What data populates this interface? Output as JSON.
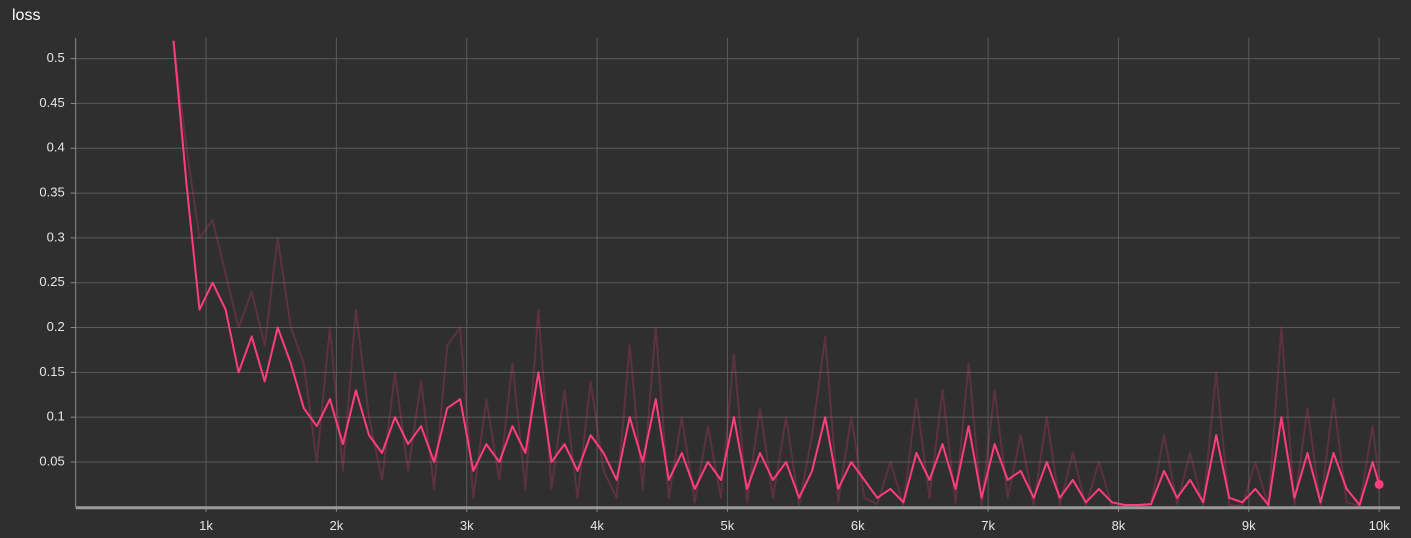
{
  "chart_data": {
    "type": "line",
    "title": "loss",
    "x": [
      750,
      850,
      950,
      1050,
      1150,
      1250,
      1350,
      1450,
      1550,
      1650,
      1750,
      1850,
      1950,
      2050,
      2150,
      2250,
      2350,
      2450,
      2550,
      2650,
      2750,
      2850,
      2950,
      3050,
      3150,
      3250,
      3350,
      3450,
      3550,
      3650,
      3750,
      3850,
      3950,
      4050,
      4150,
      4250,
      4350,
      4450,
      4550,
      4650,
      4750,
      4850,
      4950,
      5050,
      5150,
      5250,
      5350,
      5450,
      5550,
      5650,
      5750,
      5850,
      5950,
      6050,
      6150,
      6250,
      6350,
      6450,
      6550,
      6650,
      6750,
      6850,
      6950,
      7050,
      7150,
      7250,
      7350,
      7450,
      7550,
      7650,
      7750,
      7850,
      7950,
      8050,
      8150,
      8250,
      8350,
      8450,
      8550,
      8650,
      8750,
      8850,
      8950,
      9050,
      9150,
      9250,
      9350,
      9450,
      9550,
      9650,
      9750,
      9850,
      9950,
      10000
    ],
    "series": [
      {
        "color": "#ff3d7f",
        "opacity": 0.22,
        "values": [
          0.52,
          0.4,
          0.3,
          0.32,
          0.26,
          0.2,
          0.24,
          0.18,
          0.3,
          0.2,
          0.16,
          0.05,
          0.2,
          0.04,
          0.22,
          0.1,
          0.03,
          0.15,
          0.04,
          0.14,
          0.02,
          0.18,
          0.2,
          0.01,
          0.12,
          0.03,
          0.16,
          0.02,
          0.22,
          0.02,
          0.13,
          0.01,
          0.14,
          0.04,
          0.01,
          0.18,
          0.02,
          0.2,
          0.01,
          0.1,
          0.005,
          0.09,
          0.01,
          0.17,
          0.005,
          0.11,
          0.01,
          0.1,
          0.002,
          0.08,
          0.19,
          0.005,
          0.1,
          0.01,
          0.003,
          0.05,
          0.002,
          0.12,
          0.01,
          0.13,
          0.005,
          0.16,
          0.002,
          0.13,
          0.01,
          0.08,
          0.002,
          0.1,
          0.002,
          0.06,
          0.001,
          0.05,
          0.001,
          0.001,
          0.001,
          0.002,
          0.08,
          0.003,
          0.06,
          0.001,
          0.15,
          0.002,
          0.001,
          0.05,
          0.001,
          0.2,
          0.002,
          0.11,
          0.001,
          0.12,
          0.005,
          0.001,
          0.09,
          0.03
        ]
      },
      {
        "color": "#ff3d7f",
        "opacity": 1,
        "values": [
          0.52,
          0.36,
          0.22,
          0.25,
          0.22,
          0.15,
          0.19,
          0.14,
          0.2,
          0.16,
          0.11,
          0.09,
          0.12,
          0.07,
          0.13,
          0.08,
          0.06,
          0.1,
          0.07,
          0.09,
          0.05,
          0.11,
          0.12,
          0.04,
          0.07,
          0.05,
          0.09,
          0.06,
          0.15,
          0.05,
          0.07,
          0.04,
          0.08,
          0.06,
          0.03,
          0.1,
          0.05,
          0.12,
          0.03,
          0.06,
          0.02,
          0.05,
          0.03,
          0.1,
          0.02,
          0.06,
          0.03,
          0.05,
          0.01,
          0.04,
          0.1,
          0.02,
          0.05,
          0.03,
          0.01,
          0.02,
          0.005,
          0.06,
          0.03,
          0.07,
          0.02,
          0.09,
          0.01,
          0.07,
          0.03,
          0.04,
          0.01,
          0.05,
          0.01,
          0.03,
          0.005,
          0.02,
          0.005,
          0.002,
          0.002,
          0.003,
          0.04,
          0.01,
          0.03,
          0.005,
          0.08,
          0.01,
          0.005,
          0.02,
          0.002,
          0.1,
          0.01,
          0.06,
          0.005,
          0.06,
          0.02,
          0.002,
          0.05,
          0.025
        ]
      }
    ],
    "xlim": [
      0,
      10160
    ],
    "ylim": [
      0,
      0.523
    ],
    "xticks": [
      {
        "value": 1000,
        "label": "1k"
      },
      {
        "value": 2000,
        "label": "2k"
      },
      {
        "value": 3000,
        "label": "3k"
      },
      {
        "value": 4000,
        "label": "4k"
      },
      {
        "value": 5000,
        "label": "5k"
      },
      {
        "value": 6000,
        "label": "6k"
      },
      {
        "value": 7000,
        "label": "7k"
      },
      {
        "value": 8000,
        "label": "8k"
      },
      {
        "value": 9000,
        "label": "9k"
      },
      {
        "value": 10000,
        "label": "10k"
      }
    ],
    "yticks": [
      0.05,
      0.1,
      0.15,
      0.2,
      0.25,
      0.3,
      0.35,
      0.4,
      0.45,
      0.5
    ],
    "grid": true
  }
}
